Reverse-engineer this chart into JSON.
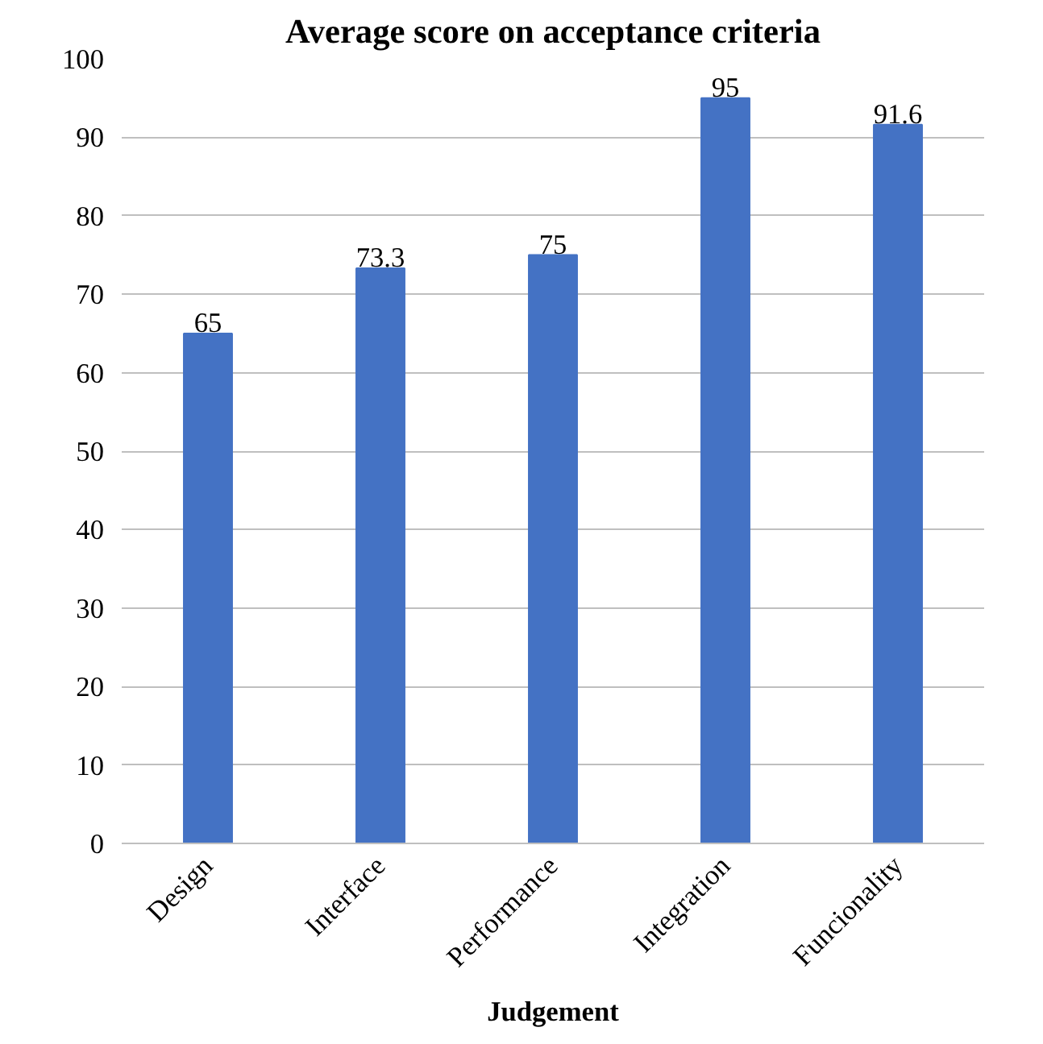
{
  "chart_data": {
    "type": "bar",
    "title": "Average score on acceptance criteria",
    "xlabel": "Judgement",
    "categories": [
      "Design",
      "Interface",
      "Performance",
      "Integration",
      "Funcionality"
    ],
    "values": [
      65,
      73.3,
      75,
      95,
      91.6
    ],
    "color": "#4472c4",
    "ylim": [
      0,
      100
    ],
    "yticks": [
      0,
      10,
      20,
      30,
      40,
      50,
      60,
      70,
      80,
      90,
      100
    ],
    "grid": "y",
    "data_labels": true
  }
}
